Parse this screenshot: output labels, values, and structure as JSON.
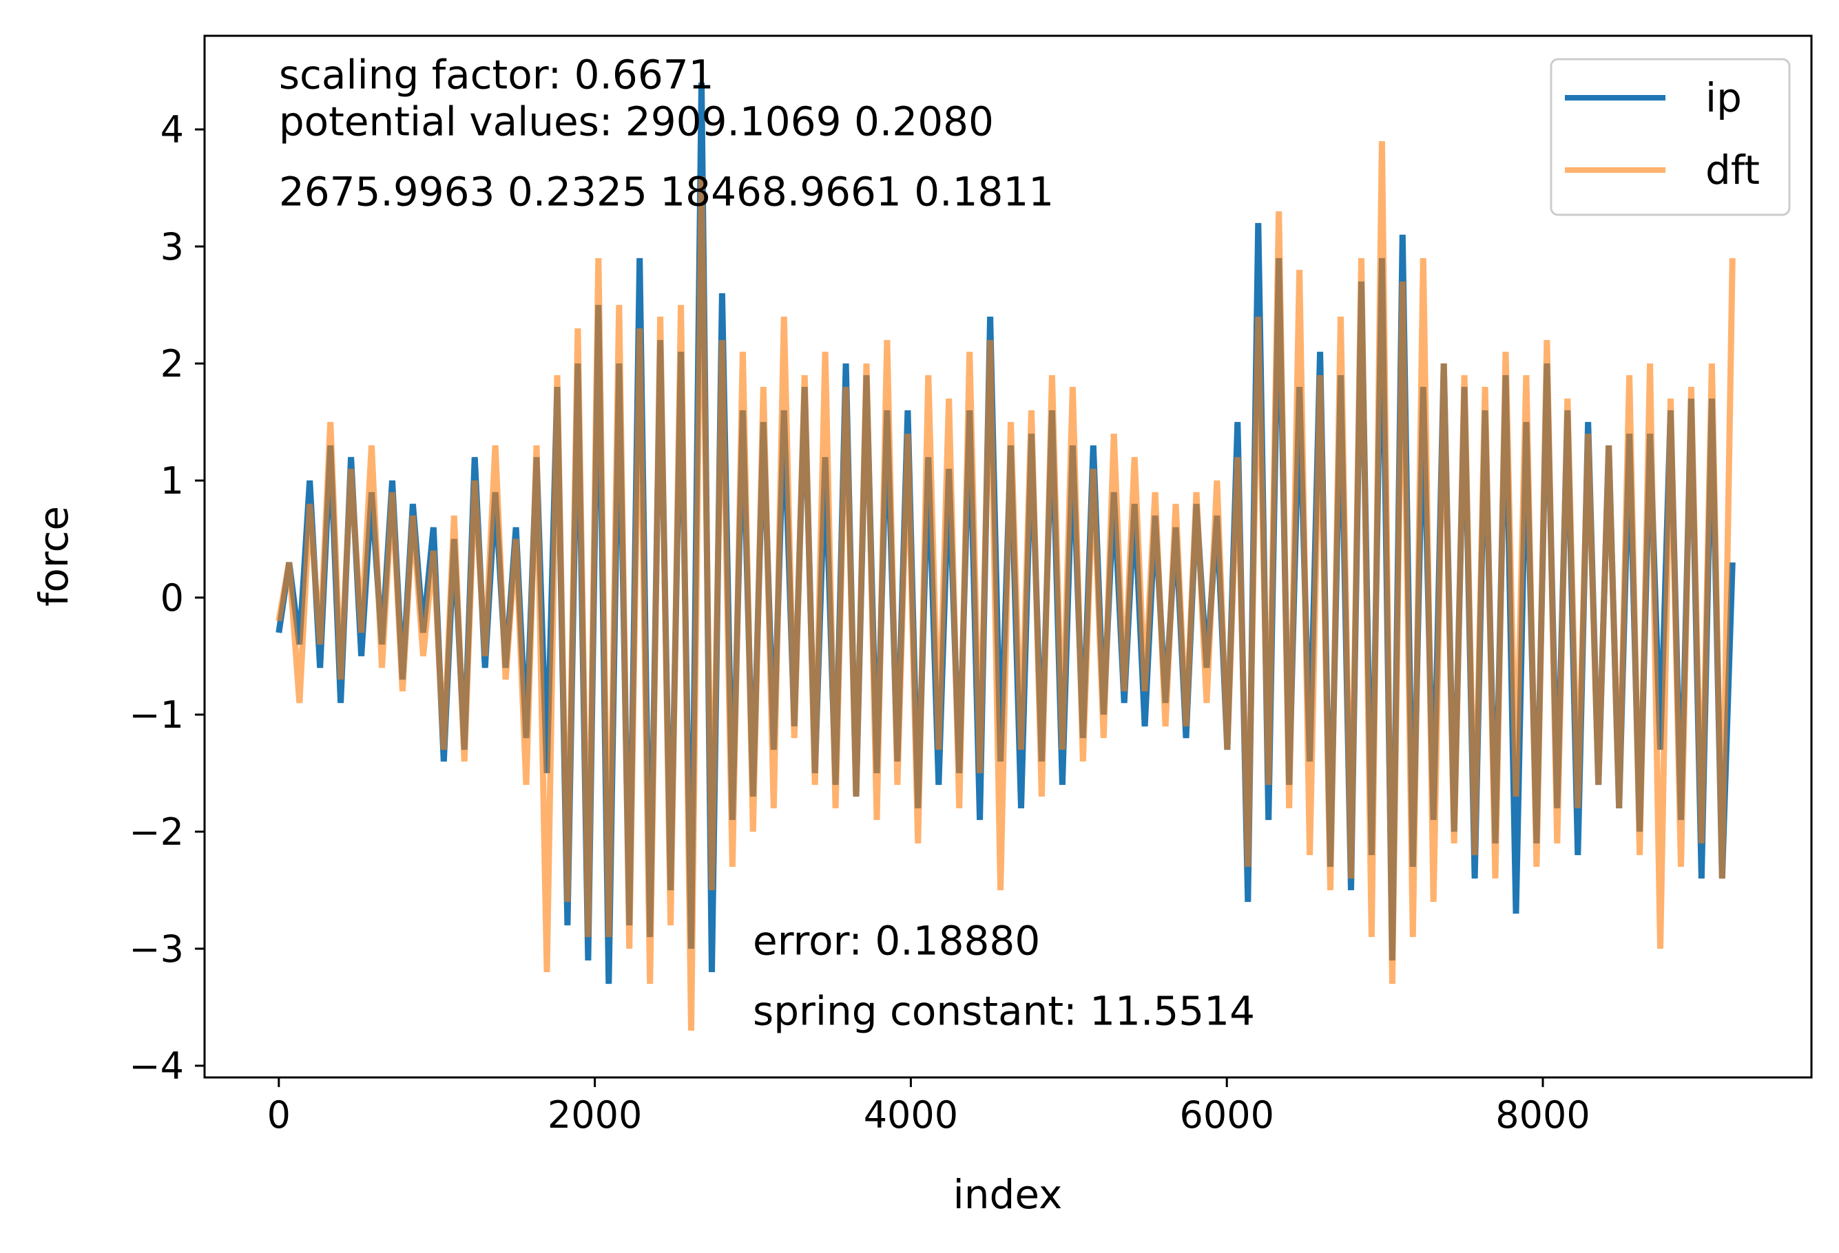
{
  "chart_data": {
    "type": "line",
    "xlabel": "index",
    "ylabel": "force",
    "xlim": [
      -470,
      9700
    ],
    "ylim": [
      -4.1,
      4.8
    ],
    "x_ticks": [
      0,
      2000,
      4000,
      6000,
      8000
    ],
    "x_tick_labels": [
      "0",
      "2000",
      "4000",
      "6000",
      "8000"
    ],
    "y_ticks": [
      4,
      3,
      2,
      1,
      0,
      -1,
      -2,
      -3,
      -4
    ],
    "y_tick_labels": [
      "4",
      "3",
      "2",
      "1",
      "0",
      "−1",
      "−2",
      "−3",
      "−4"
    ],
    "legend": {
      "position": "top-right",
      "entries": [
        "ip",
        "dft"
      ]
    },
    "series": [
      {
        "name": "ip",
        "color": "#1f77b4",
        "x_start": 0,
        "x_end": 9200,
        "values": [
          -0.3,
          0.3,
          -0.4,
          1.0,
          -0.6,
          1.3,
          -0.9,
          1.2,
          -0.5,
          0.9,
          -0.4,
          1.0,
          -0.7,
          0.8,
          -0.3,
          0.6,
          -1.4,
          0.5,
          -1.3,
          1.2,
          -0.6,
          0.9,
          -0.6,
          0.6,
          -1.2,
          1.2,
          -1.5,
          1.8,
          -2.8,
          2.0,
          -3.1,
          2.5,
          -3.3,
          2.0,
          -2.8,
          2.9,
          -2.9,
          2.2,
          -2.5,
          2.1,
          -3.0,
          4.4,
          -3.2,
          2.6,
          -1.9,
          1.6,
          -1.7,
          1.5,
          -1.3,
          1.6,
          -1.1,
          1.8,
          -1.5,
          1.2,
          -1.6,
          2.0,
          -1.7,
          1.9,
          -1.5,
          1.6,
          -1.4,
          1.6,
          -1.8,
          1.2,
          -1.6,
          1.1,
          -1.5,
          1.6,
          -1.9,
          2.4,
          -1.4,
          1.3,
          -1.8,
          1.4,
          -1.4,
          1.6,
          -1.6,
          1.3,
          -1.2,
          1.3,
          -1.0,
          0.9,
          -0.9,
          0.8,
          -1.1,
          0.7,
          -0.9,
          0.6,
          -1.2,
          0.8,
          -0.6,
          0.7,
          -1.3,
          1.5,
          -2.6,
          3.2,
          -1.9,
          2.9,
          -1.6,
          1.8,
          -1.4,
          2.1,
          -2.3,
          1.9,
          -2.5,
          2.7,
          -2.2,
          2.9,
          -3.1,
          3.1,
          -2.3,
          1.8,
          -1.9,
          2.0,
          -2.0,
          1.8,
          -2.4,
          1.6,
          -2.1,
          1.9,
          -2.7,
          1.5,
          -2.1,
          2.0,
          -1.8,
          1.6,
          -2.2,
          1.5,
          -1.6,
          1.3,
          -1.8,
          1.4,
          -2.0,
          1.4,
          -1.3,
          1.6,
          -1.9,
          1.7,
          -2.4,
          1.7,
          -2.4,
          0.3
        ]
      },
      {
        "name": "dft",
        "color": "#ff7f0e",
        "opacity": 0.6,
        "x_start": 0,
        "x_end": 9200,
        "values": [
          -0.2,
          0.3,
          -0.9,
          0.8,
          -0.4,
          1.5,
          -0.7,
          1.1,
          -0.3,
          1.3,
          -0.6,
          0.9,
          -0.8,
          0.7,
          -0.5,
          0.4,
          -1.3,
          0.7,
          -1.4,
          1.0,
          -0.5,
          1.3,
          -0.7,
          0.5,
          -1.6,
          1.3,
          -3.2,
          1.9,
          -2.6,
          2.3,
          -2.9,
          2.9,
          -2.9,
          2.5,
          -3.0,
          2.3,
          -3.3,
          2.4,
          -2.8,
          2.5,
          -3.7,
          3.6,
          -2.5,
          2.2,
          -2.3,
          2.1,
          -2.0,
          1.8,
          -1.8,
          2.4,
          -1.2,
          1.9,
          -1.6,
          2.1,
          -1.8,
          1.8,
          -1.7,
          2.0,
          -1.9,
          2.2,
          -1.6,
          1.4,
          -2.1,
          1.9,
          -1.3,
          1.7,
          -1.8,
          2.1,
          -1.5,
          2.2,
          -2.5,
          1.5,
          -1.3,
          1.6,
          -1.7,
          1.9,
          -1.3,
          1.8,
          -1.4,
          1.1,
          -1.2,
          1.4,
          -0.8,
          1.2,
          -0.8,
          0.9,
          -1.1,
          0.8,
          -1.1,
          0.9,
          -0.9,
          1.0,
          -1.3,
          1.2,
          -2.3,
          2.4,
          -1.6,
          3.3,
          -1.8,
          2.8,
          -2.2,
          1.9,
          -2.5,
          2.4,
          -2.4,
          2.9,
          -2.9,
          3.9,
          -3.3,
          2.7,
          -2.9,
          2.9,
          -2.6,
          2.0,
          -2.1,
          1.9,
          -2.2,
          1.8,
          -2.4,
          2.1,
          -1.7,
          1.9,
          -2.3,
          2.2,
          -2.1,
          1.7,
          -1.8,
          1.4,
          -1.6,
          1.3,
          -1.8,
          1.9,
          -2.2,
          2.0,
          -3.0,
          1.7,
          -2.3,
          1.8,
          -2.1,
          2.0,
          -2.4,
          2.9
        ]
      }
    ],
    "annotations": [
      {
        "text": "scaling factor: 0.6671",
        "x": 0,
        "y": 4.35
      },
      {
        "text": "potential values: 2909.1069 0.2080",
        "x": 0,
        "y": 3.95
      },
      {
        "text": "2675.9963 0.2325 18468.9661 0.1811",
        "x": 0,
        "y": 3.35
      },
      {
        "text": "error: 0.18880",
        "x": 3000,
        "y": -3.05
      },
      {
        "text": "spring constant: 11.5514",
        "x": 3000,
        "y": -3.65
      }
    ]
  }
}
